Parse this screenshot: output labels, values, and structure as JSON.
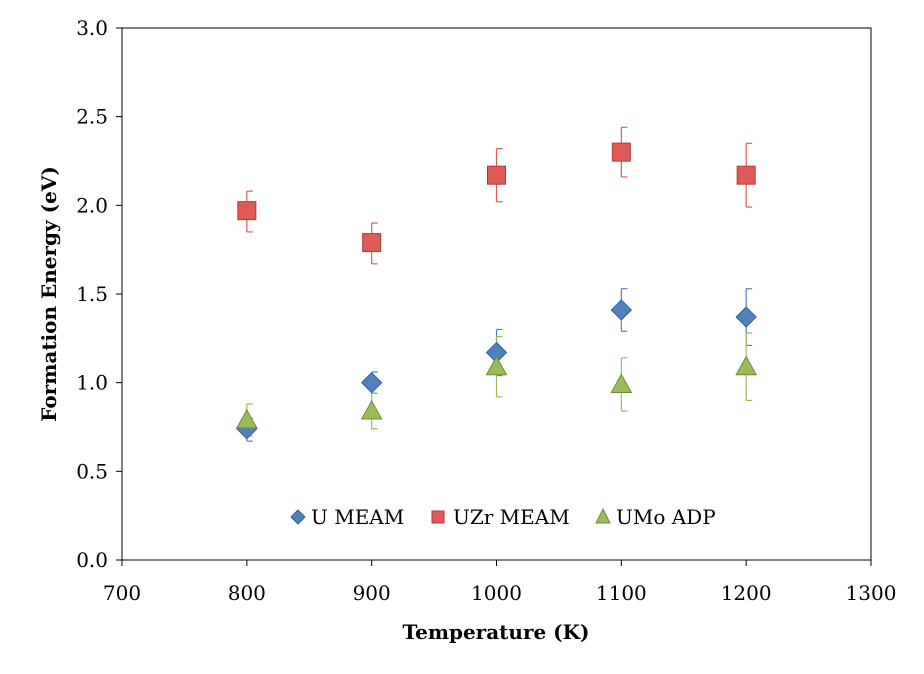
{
  "chart_data": {
    "type": "scatter",
    "title": "",
    "xlabel": "Temperature (K)",
    "ylabel": "Formation Energy (eV)",
    "xlim": [
      700,
      1300
    ],
    "ylim": [
      0.0,
      3.0
    ],
    "xticks": [
      "700",
      "800",
      "900",
      "1000",
      "1100",
      "1200",
      "1300"
    ],
    "yticks": [
      "0.0",
      "0.5",
      "1.0",
      "1.5",
      "2.0",
      "2.5",
      "3.0"
    ],
    "grid": false,
    "legend_position": "bottom-inside",
    "series": [
      {
        "name": "U MEAM",
        "marker": "diamond",
        "color": "#4f81bd",
        "x": [
          800,
          900,
          1000,
          1100,
          1200
        ],
        "y": [
          0.74,
          1.0,
          1.17,
          1.41,
          1.37
        ],
        "err_plus": [
          0.06,
          0.06,
          0.13,
          0.12,
          0.16
        ],
        "err_minus": [
          0.07,
          0.06,
          0.13,
          0.12,
          0.16
        ]
      },
      {
        "name": "UZr MEAM",
        "marker": "square",
        "color": "#e05a58",
        "x": [
          800,
          900,
          1000,
          1100,
          1200
        ],
        "y": [
          1.97,
          1.79,
          2.17,
          2.3,
          2.17
        ],
        "err_plus": [
          0.11,
          0.11,
          0.15,
          0.14,
          0.18
        ],
        "err_minus": [
          0.12,
          0.12,
          0.15,
          0.14,
          0.18
        ]
      },
      {
        "name": "UMo ADP",
        "marker": "triangle",
        "color": "#9bbb59",
        "x": [
          800,
          900,
          1000,
          1100,
          1200
        ],
        "y": [
          0.79,
          0.84,
          1.09,
          0.99,
          1.09
        ],
        "err_plus": [
          0.09,
          0.1,
          0.17,
          0.15,
          0.19
        ],
        "err_minus": [
          0.09,
          0.1,
          0.17,
          0.15,
          0.19
        ]
      }
    ]
  }
}
